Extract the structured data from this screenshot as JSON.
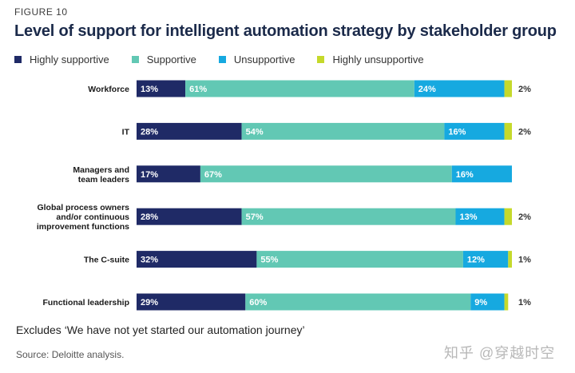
{
  "figure_label": "FIGURE 10",
  "watermark": "知乎 @穿越时空",
  "note": "Excludes ‘We have not yet started our automation journey’",
  "source": "Source: Deloitte analysis.",
  "colors": {
    "highly_supportive": "#1f2a66",
    "supportive": "#62c8b4",
    "unsupportive": "#16a9e0",
    "highly_unsupportive": "#c5d92b"
  },
  "chart_data": {
    "type": "bar",
    "orientation": "horizontal",
    "stacked": true,
    "title": "Level of support for intelligent automation strategy by stakeholder group",
    "xlabel": "",
    "ylabel": "",
    "xlim": [
      0,
      100
    ],
    "grid": false,
    "legend_position": "top-left",
    "categories": [
      [
        "Workforce"
      ],
      [
        "IT"
      ],
      [
        "Managers and",
        "team leaders"
      ],
      [
        "Global process owners",
        "and/or continuous",
        "improvement functions"
      ],
      [
        "The C-suite"
      ],
      [
        "Functional leadership"
      ]
    ],
    "series": [
      {
        "name": "Highly supportive",
        "color": "#1f2a66",
        "values": [
          13,
          28,
          17,
          28,
          32,
          29
        ]
      },
      {
        "name": "Supportive",
        "color": "#62c8b4",
        "values": [
          61,
          54,
          67,
          57,
          55,
          60
        ]
      },
      {
        "name": "Unsupportive",
        "color": "#16a9e0",
        "values": [
          24,
          16,
          16,
          13,
          12,
          9
        ]
      },
      {
        "name": "Highly unsupportive",
        "color": "#c5d92b",
        "values": [
          2,
          2,
          0,
          2,
          1,
          1
        ]
      }
    ],
    "data_labels": [
      [
        "13%",
        "61%",
        "24%",
        "2%"
      ],
      [
        "28%",
        "54%",
        "16%",
        "2%"
      ],
      [
        "17%",
        "67%",
        "16%",
        ""
      ],
      [
        "28%",
        "57%",
        "13%",
        "2%"
      ],
      [
        "32%",
        "55%",
        "12%",
        "1%"
      ],
      [
        "29%",
        "60%",
        "9%",
        "1%"
      ]
    ]
  }
}
